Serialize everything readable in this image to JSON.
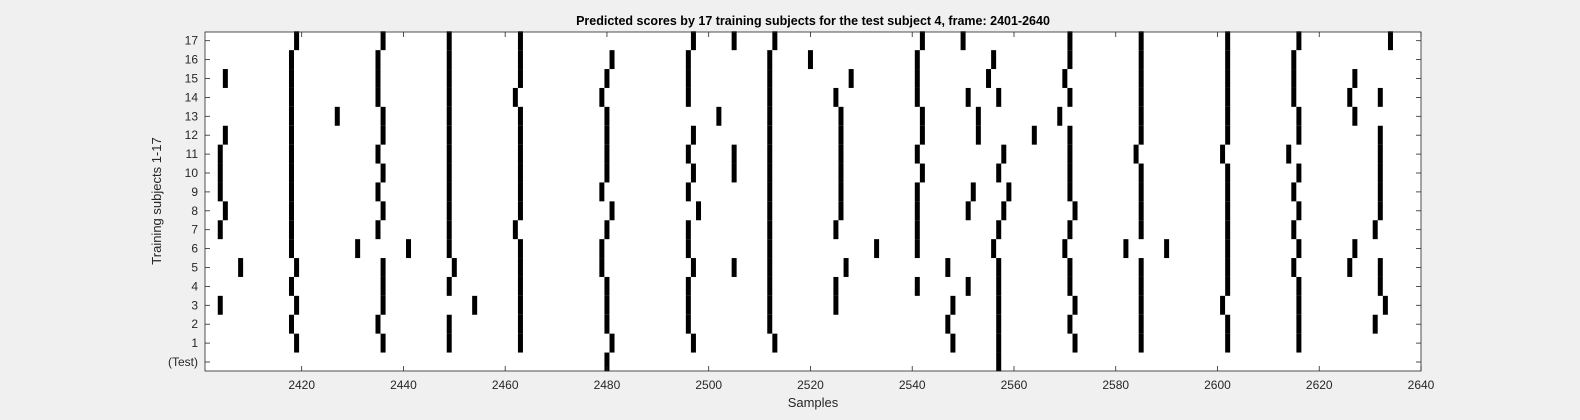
{
  "chart_data": {
    "type": "raster",
    "title": "Predicted scores by 17 training subjects for the test subject 4, frame: 2401-2640",
    "xlabel": "Samples",
    "ylabel": "Training subjects 1-17",
    "xlim": [
      2401,
      2640
    ],
    "x_ticks": [
      2420,
      2440,
      2460,
      2480,
      2500,
      2520,
      2540,
      2560,
      2580,
      2600,
      2620,
      2640
    ],
    "y_tick_labels": [
      "(Test)",
      "1",
      "2",
      "3",
      "4",
      "5",
      "6",
      "7",
      "8",
      "9",
      "10",
      "11",
      "12",
      "13",
      "14",
      "15",
      "16",
      "17"
    ],
    "grid": false,
    "rows": [
      {
        "label": "(Test)",
        "x": [
          2480,
          2557
        ]
      },
      {
        "label": "1",
        "x": [
          2419,
          2436,
          2449,
          2463,
          2481,
          2497,
          2513,
          2548,
          2557,
          2572,
          2585,
          2602,
          2616
        ]
      },
      {
        "label": "2",
        "x": [
          2418,
          2435,
          2449,
          2463,
          2480,
          2496,
          2512,
          2547,
          2557,
          2571,
          2585,
          2602,
          2616,
          2631
        ]
      },
      {
        "label": "3",
        "x": [
          2404,
          2419,
          2436,
          2454,
          2463,
          2480,
          2496,
          2512,
          2525,
          2548,
          2557,
          2572,
          2585,
          2601,
          2616,
          2633
        ]
      },
      {
        "label": "4",
        "x": [
          2418,
          2436,
          2449,
          2463,
          2480,
          2496,
          2512,
          2525,
          2541,
          2551,
          2557,
          2571,
          2585,
          2602,
          2616,
          2632
        ]
      },
      {
        "label": "5",
        "x": [
          2408,
          2419,
          2436,
          2450,
          2463,
          2479,
          2497,
          2505,
          2512,
          2527,
          2547,
          2557,
          2571,
          2585,
          2602,
          2615,
          2626,
          2632
        ]
      },
      {
        "label": "6",
        "x": [
          2418,
          2431,
          2441,
          2449,
          2463,
          2479,
          2496,
          2512,
          2533,
          2541,
          2556,
          2570,
          2582,
          2590,
          2602,
          2616,
          2627
        ]
      },
      {
        "label": "7",
        "x": [
          2404,
          2418,
          2435,
          2449,
          2462,
          2480,
          2496,
          2512,
          2525,
          2541,
          2557,
          2571,
          2585,
          2602,
          2615,
          2631
        ]
      },
      {
        "label": "8",
        "x": [
          2405,
          2418,
          2436,
          2449,
          2463,
          2481,
          2498,
          2512,
          2526,
          2541,
          2551,
          2558,
          2572,
          2585,
          2602,
          2616,
          2632
        ]
      },
      {
        "label": "9",
        "x": [
          2404,
          2418,
          2435,
          2449,
          2463,
          2479,
          2496,
          2512,
          2526,
          2541,
          2552,
          2559,
          2571,
          2585,
          2602,
          2615,
          2632
        ]
      },
      {
        "label": "10",
        "x": [
          2404,
          2418,
          2436,
          2449,
          2463,
          2480,
          2497,
          2505,
          2512,
          2526,
          2542,
          2557,
          2571,
          2585,
          2602,
          2616,
          2632
        ]
      },
      {
        "label": "11",
        "x": [
          2404,
          2418,
          2435,
          2449,
          2463,
          2480,
          2496,
          2505,
          2512,
          2526,
          2541,
          2558,
          2571,
          2584,
          2601,
          2614,
          2632
        ]
      },
      {
        "label": "12",
        "x": [
          2405,
          2418,
          2436,
          2449,
          2463,
          2480,
          2497,
          2512,
          2526,
          2542,
          2553,
          2564,
          2571,
          2585,
          2602,
          2616,
          2632
        ]
      },
      {
        "label": "13",
        "x": [
          2418,
          2427,
          2436,
          2449,
          2463,
          2480,
          2502,
          2512,
          2526,
          2542,
          2553,
          2569,
          2585,
          2602,
          2616,
          2627
        ]
      },
      {
        "label": "14",
        "x": [
          2418,
          2435,
          2449,
          2462,
          2479,
          2496,
          2512,
          2525,
          2541,
          2551,
          2557,
          2571,
          2585,
          2602,
          2615,
          2626,
          2632
        ]
      },
      {
        "label": "15",
        "x": [
          2405,
          2418,
          2435,
          2449,
          2463,
          2480,
          2496,
          2512,
          2528,
          2541,
          2555,
          2570,
          2585,
          2602,
          2615,
          2627
        ]
      },
      {
        "label": "16",
        "x": [
          2418,
          2435,
          2449,
          2463,
          2481,
          2496,
          2512,
          2520,
          2541,
          2556,
          2571,
          2585,
          2602,
          2615
        ]
      },
      {
        "label": "17",
        "x": [
          2419,
          2436,
          2449,
          2463,
          2497,
          2505,
          2513,
          2542,
          2550,
          2571,
          2585,
          2602,
          2616,
          2634
        ]
      }
    ],
    "mark_color": "#000000",
    "background": "#ffffff"
  }
}
